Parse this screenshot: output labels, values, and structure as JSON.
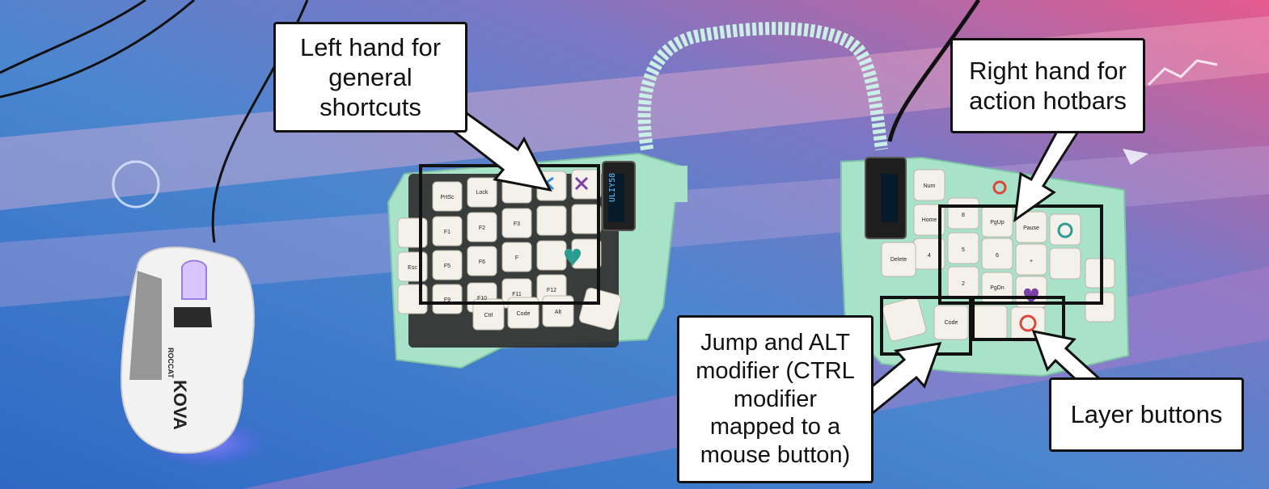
{
  "callouts": {
    "left_hand": "Left hand for\ngeneral\nshortcuts",
    "right_hand": "Right hand for\naction hotbars",
    "jump_alt": "Jump and ALT\nmodifier (CTRL\nmodifier\nmapped to a\nmouse button)",
    "layer_buttons": "Layer buttons"
  },
  "mouse": {
    "brand": "ROCCAT",
    "model": "KOVA"
  },
  "oled_text": "ULIY58",
  "left_keys": [
    "PrtSc",
    "Lock",
    "F1",
    "F2",
    "F3",
    "F5",
    "F6",
    "F",
    "F9",
    "F10",
    "F11",
    "F12",
    "Esc",
    "Ctrl",
    "Code",
    "Alt"
  ],
  "right_keys": [
    "Num",
    "Home",
    "8",
    "PgUp",
    "Pause",
    "5",
    "6",
    "+",
    "2",
    "PgDn",
    "Delete",
    "Code",
    "4"
  ],
  "colors": {
    "mat_blue": "#3f79c9",
    "mat_pink": "#e4699a",
    "case_mint": "#a8e2c8",
    "keycap": "#f4f1ea",
    "mouse_white": "#f2f2f2"
  }
}
